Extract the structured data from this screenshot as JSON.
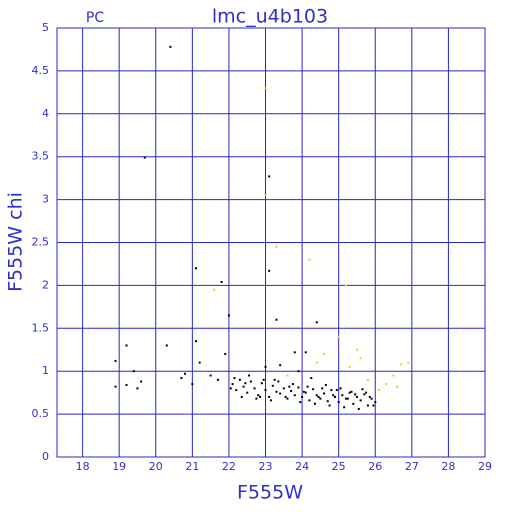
{
  "chart_data": {
    "type": "scatter",
    "subtitle": "PC",
    "title": "lmc_u4b103",
    "x_label": "F555W",
    "y_label": "F555W chi",
    "xlim": [
      17.3,
      29
    ],
    "ylim": [
      0,
      5
    ],
    "xticks": [
      18,
      19,
      20,
      21,
      22,
      23,
      24,
      25,
      26,
      27,
      28,
      29
    ],
    "yticks": [
      0,
      0.5,
      1,
      1.5,
      2,
      2.5,
      3,
      3.5,
      4,
      4.5,
      5
    ],
    "grid": true,
    "series": [
      {
        "color": "#000000",
        "x": [
          20.4,
          19.7,
          23.1,
          21.1,
          21.8,
          23.1,
          22.0,
          23.3,
          24.4,
          20.3,
          19.2,
          18.9,
          18.9,
          19.2,
          19.4,
          19.5,
          19.6,
          20.7,
          20.8,
          21.0,
          21.1,
          21.2,
          21.5,
          21.7,
          21.9,
          23.0,
          23.4,
          23.8,
          24.1,
          23.9,
          22.1,
          22.2,
          22.3,
          22.4,
          22.5,
          22.6,
          22.7,
          22.8,
          22.9,
          23.0,
          23.1,
          23.2,
          23.3,
          23.4,
          23.5,
          23.6,
          23.7,
          23.8,
          23.9,
          24.0,
          24.1,
          24.2,
          24.3,
          24.4,
          24.5,
          24.6,
          24.7,
          24.8,
          24.9,
          25.0,
          25.1,
          25.2,
          25.3,
          25.4,
          25.5,
          25.6,
          25.7,
          25.8,
          25.9,
          26.0,
          22.15,
          22.35,
          22.55,
          22.75,
          22.95,
          23.15,
          23.35,
          23.55,
          23.75,
          23.95,
          24.15,
          24.35,
          24.55,
          24.75,
          24.95,
          25.15,
          25.35,
          25.55,
          25.75,
          25.95,
          22.05,
          22.45,
          22.85,
          23.25,
          23.65,
          24.05,
          24.45,
          24.85,
          25.25,
          25.65,
          25.85,
          24.65,
          25.05,
          25.45,
          24.25
        ],
        "y": [
          4.78,
          3.49,
          3.27,
          2.2,
          2.04,
          2.17,
          1.65,
          1.6,
          1.57,
          1.3,
          1.3,
          1.12,
          0.82,
          0.84,
          1.0,
          0.8,
          0.88,
          0.92,
          0.97,
          0.85,
          1.35,
          1.1,
          0.95,
          0.9,
          1.2,
          1.05,
          1.07,
          1.22,
          1.22,
          1.0,
          0.85,
          0.78,
          0.9,
          0.82,
          0.75,
          0.88,
          0.8,
          0.72,
          0.86,
          0.78,
          0.7,
          0.83,
          0.76,
          0.74,
          0.8,
          0.68,
          0.77,
          0.72,
          0.81,
          0.7,
          0.75,
          0.66,
          0.79,
          0.72,
          0.68,
          0.74,
          0.65,
          0.78,
          0.7,
          0.64,
          0.72,
          0.68,
          0.75,
          0.62,
          0.7,
          0.66,
          0.73,
          0.6,
          0.68,
          0.64,
          0.92,
          0.7,
          0.95,
          0.68,
          0.9,
          0.66,
          0.88,
          0.7,
          0.85,
          0.64,
          0.82,
          0.62,
          0.8,
          0.6,
          0.78,
          0.58,
          0.76,
          0.56,
          0.75,
          0.6,
          0.8,
          0.86,
          0.7,
          0.9,
          0.82,
          0.76,
          0.7,
          0.72,
          0.68,
          0.79,
          0.7,
          0.84,
          0.8,
          0.73,
          0.92
        ]
      },
      {
        "color": "#e8d020",
        "x": [
          23.0,
          23.0,
          23.3,
          24.2,
          25.2,
          21.6,
          25.0,
          24.6,
          25.6,
          26.7,
          26.9,
          26.5,
          26.3,
          26.6,
          25.8,
          24.4,
          25.3,
          26.1,
          23.6,
          25.5
        ],
        "y": [
          4.3,
          3.05,
          2.45,
          2.3,
          2.0,
          1.95,
          1.4,
          1.2,
          1.15,
          1.08,
          1.1,
          0.95,
          0.85,
          0.82,
          0.9,
          1.1,
          1.05,
          0.78,
          0.95,
          1.25
        ]
      }
    ]
  }
}
